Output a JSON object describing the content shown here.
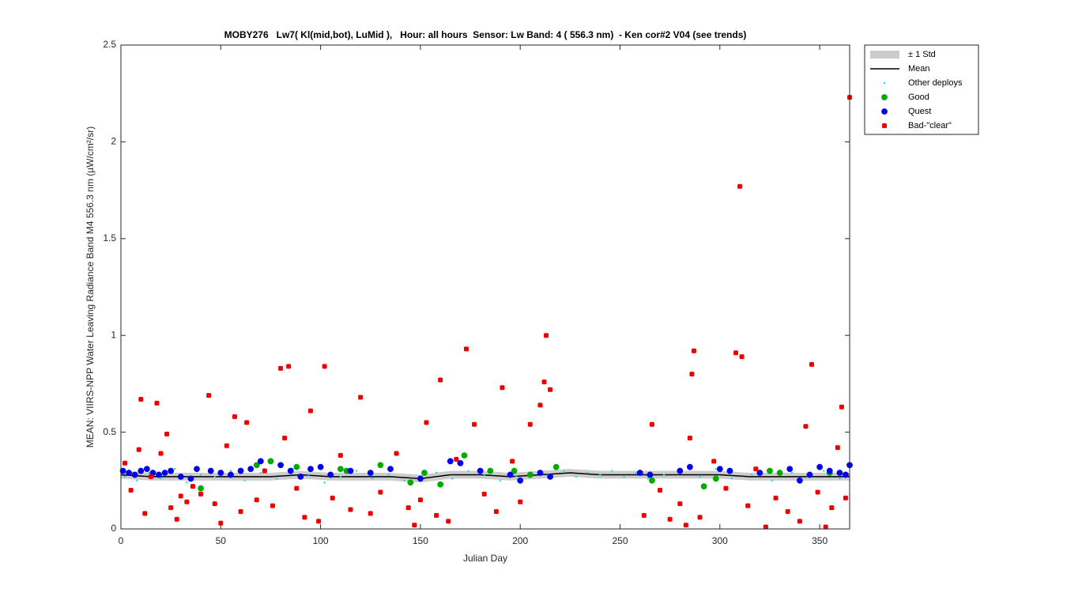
{
  "chart_data": {
    "type": "scatter",
    "title": "MOBY276   Lw7( Kl(mid,bot), LuMid ),   Hour: all hours  Sensor: Lw Band: 4 ( 556.3 nm)  - Ken cor#2 V04 (see trends)",
    "x_label": "Julian Day",
    "y_label": "MEAN: VIIRS-NPP Water Leaving Radiance Band M4 556.3 nm (µW/cm²/sr)",
    "xlim": [
      0,
      365
    ],
    "ylim": [
      0,
      2.5
    ],
    "xticks": [
      0,
      50,
      100,
      150,
      200,
      250,
      300,
      350
    ],
    "yticks": [
      0,
      0.5,
      1,
      1.5,
      2,
      2.5
    ],
    "legend": "northeastoutside",
    "series": [
      {
        "name": "± 1 Std",
        "kind": "band",
        "color": "#cccccc",
        "x": [
          0,
          15,
          30,
          45,
          60,
          75,
          90,
          105,
          120,
          135,
          150,
          165,
          180,
          195,
          210,
          225,
          240,
          255,
          270,
          285,
          300,
          315,
          330,
          345,
          360,
          365
        ],
        "lower": [
          0.26,
          0.25,
          0.25,
          0.25,
          0.25,
          0.25,
          0.26,
          0.25,
          0.25,
          0.25,
          0.24,
          0.26,
          0.26,
          0.25,
          0.26,
          0.27,
          0.26,
          0.26,
          0.26,
          0.26,
          0.26,
          0.25,
          0.25,
          0.25,
          0.25,
          0.25
        ],
        "upper": [
          0.3,
          0.29,
          0.29,
          0.29,
          0.29,
          0.29,
          0.3,
          0.29,
          0.29,
          0.29,
          0.28,
          0.3,
          0.3,
          0.29,
          0.3,
          0.31,
          0.3,
          0.3,
          0.3,
          0.3,
          0.3,
          0.29,
          0.29,
          0.29,
          0.29,
          0.29
        ]
      },
      {
        "name": "Mean",
        "kind": "line",
        "color": "#000000",
        "x": [
          0,
          15,
          30,
          45,
          60,
          75,
          90,
          105,
          120,
          135,
          150,
          165,
          180,
          195,
          210,
          225,
          240,
          255,
          270,
          285,
          300,
          315,
          330,
          345,
          360,
          365
        ],
        "values": [
          0.28,
          0.27,
          0.27,
          0.27,
          0.27,
          0.27,
          0.28,
          0.27,
          0.27,
          0.27,
          0.26,
          0.28,
          0.28,
          0.27,
          0.28,
          0.29,
          0.28,
          0.28,
          0.28,
          0.28,
          0.28,
          0.27,
          0.27,
          0.27,
          0.27,
          0.27
        ]
      },
      {
        "name": "Other deploys",
        "kind": "dot",
        "color": "#00e5ee",
        "x": [
          2,
          8,
          14,
          20,
          27,
          33,
          40,
          47,
          55,
          62,
          70,
          78,
          86,
          94,
          102,
          110,
          118,
          126,
          134,
          142,
          150,
          158,
          166,
          174,
          182,
          190,
          198,
          206,
          214,
          222,
          228,
          234,
          240,
          246,
          252,
          258,
          264,
          272,
          280,
          290,
          298,
          306,
          316,
          326,
          336,
          344,
          352,
          360
        ],
        "values": [
          0.27,
          0.25,
          0.29,
          0.26,
          0.31,
          0.24,
          0.28,
          0.27,
          0.3,
          0.25,
          0.29,
          0.26,
          0.31,
          0.28,
          0.24,
          0.27,
          0.3,
          0.26,
          0.28,
          0.25,
          0.27,
          0.29,
          0.26,
          0.3,
          0.28,
          0.25,
          0.27,
          0.29,
          0.28,
          0.3,
          0.27,
          0.29,
          0.28,
          0.3,
          0.27,
          0.29,
          0.26,
          0.28,
          0.3,
          0.27,
          0.31,
          0.26,
          0.28,
          0.25,
          0.29,
          0.27,
          0.3,
          0.26
        ]
      },
      {
        "name": "Good",
        "kind": "circle",
        "color": "#00aa00",
        "x": [
          40,
          68,
          75,
          88,
          110,
          113,
          130,
          145,
          152,
          160,
          172,
          185,
          197,
          205,
          218,
          266,
          292,
          298,
          325,
          330,
          355
        ],
        "values": [
          0.21,
          0.33,
          0.35,
          0.32,
          0.31,
          0.3,
          0.33,
          0.24,
          0.29,
          0.23,
          0.38,
          0.3,
          0.3,
          0.28,
          0.32,
          0.25,
          0.22,
          0.26,
          0.3,
          0.29,
          0.29
        ]
      },
      {
        "name": "Quest",
        "kind": "circle",
        "color": "#0000ee",
        "x": [
          1,
          4,
          7,
          10,
          13,
          16,
          19,
          22,
          25,
          30,
          35,
          38,
          45,
          50,
          55,
          60,
          65,
          70,
          80,
          85,
          90,
          95,
          100,
          105,
          115,
          125,
          135,
          150,
          165,
          170,
          180,
          195,
          200,
          210,
          215,
          260,
          265,
          280,
          285,
          300,
          305,
          320,
          335,
          340,
          345,
          350,
          355,
          360,
          363,
          365
        ],
        "values": [
          0.3,
          0.29,
          0.28,
          0.3,
          0.31,
          0.29,
          0.28,
          0.29,
          0.3,
          0.27,
          0.26,
          0.31,
          0.3,
          0.29,
          0.28,
          0.3,
          0.31,
          0.35,
          0.33,
          0.3,
          0.27,
          0.31,
          0.32,
          0.28,
          0.3,
          0.29,
          0.31,
          0.26,
          0.35,
          0.34,
          0.3,
          0.28,
          0.25,
          0.29,
          0.27,
          0.29,
          0.28,
          0.3,
          0.32,
          0.31,
          0.3,
          0.29,
          0.31,
          0.25,
          0.28,
          0.32,
          0.3,
          0.29,
          0.28,
          0.33
        ]
      },
      {
        "name": "Bad-\"clear\"",
        "kind": "square",
        "color": "#ee0000",
        "x": [
          2,
          5,
          9,
          10,
          12,
          15,
          18,
          20,
          23,
          25,
          28,
          30,
          33,
          36,
          40,
          44,
          47,
          50,
          53,
          57,
          60,
          63,
          68,
          72,
          76,
          80,
          82,
          84,
          88,
          92,
          95,
          99,
          102,
          106,
          110,
          115,
          120,
          125,
          130,
          138,
          144,
          147,
          150,
          153,
          158,
          160,
          164,
          168,
          173,
          177,
          182,
          188,
          191,
          196,
          200,
          205,
          210,
          212,
          213,
          215,
          262,
          266,
          270,
          275,
          280,
          283,
          285,
          286,
          287,
          290,
          297,
          303,
          308,
          310,
          311,
          314,
          318,
          323,
          328,
          334,
          340,
          343,
          346,
          349,
          353,
          356,
          359,
          361,
          363,
          365
        ],
        "values": [
          0.34,
          0.2,
          0.41,
          0.67,
          0.08,
          0.27,
          0.65,
          0.39,
          0.49,
          0.11,
          0.05,
          0.17,
          0.14,
          0.22,
          0.18,
          0.69,
          0.13,
          0.03,
          0.43,
          0.58,
          0.09,
          0.55,
          0.15,
          0.3,
          0.12,
          0.83,
          0.47,
          0.84,
          0.21,
          0.06,
          0.61,
          0.04,
          0.84,
          0.16,
          0.38,
          0.1,
          0.68,
          0.08,
          0.19,
          0.39,
          0.11,
          0.02,
          0.15,
          0.55,
          0.07,
          0.77,
          0.04,
          0.36,
          0.93,
          0.54,
          0.18,
          0.09,
          0.73,
          0.35,
          0.14,
          0.54,
          0.64,
          0.76,
          1.0,
          0.72,
          0.07,
          0.54,
          0.2,
          0.05,
          0.13,
          0.02,
          0.47,
          0.8,
          0.92,
          0.06,
          0.35,
          0.21,
          0.91,
          1.77,
          0.89,
          0.12,
          0.31,
          0.01,
          0.16,
          0.09,
          0.04,
          0.53,
          0.85,
          0.19,
          0.01,
          0.11,
          0.42,
          0.63,
          0.16,
          2.23
        ]
      }
    ]
  }
}
